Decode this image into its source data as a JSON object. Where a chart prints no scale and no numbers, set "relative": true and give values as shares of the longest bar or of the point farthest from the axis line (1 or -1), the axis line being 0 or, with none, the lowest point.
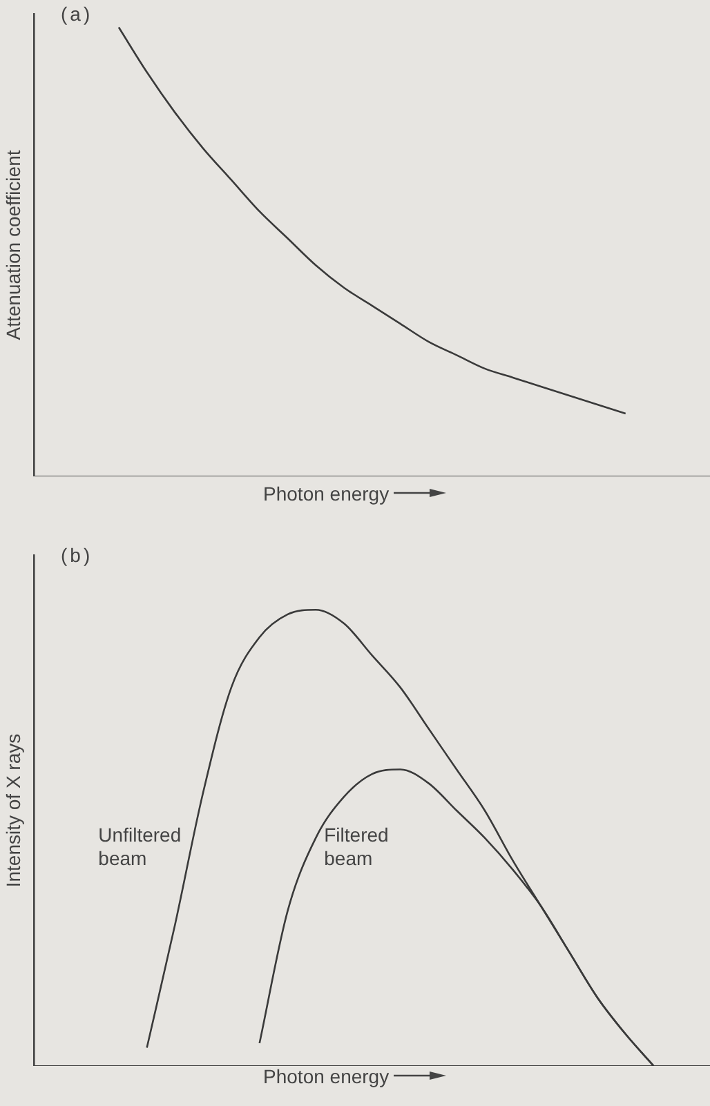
{
  "chart_data": [
    {
      "type": "line",
      "title": "(a)",
      "xlabel": "Photon energy",
      "ylabel": "Attenuation coefficient",
      "relative": true,
      "color": "#3a3a3a",
      "categories": [
        null,
        null,
        null,
        null,
        null,
        null,
        null,
        null,
        null,
        null,
        null,
        null,
        null,
        null,
        null,
        null,
        null,
        null,
        null,
        null,
        null,
        null,
        null,
        null,
        null
      ],
      "values": [
        null,
        null,
        null,
        1.0,
        0.9,
        0.81,
        0.73,
        0.66,
        0.59,
        0.53,
        0.47,
        0.42,
        0.38,
        0.34,
        0.3,
        0.27,
        0.24,
        0.22,
        0.2,
        0.18,
        0.16,
        0.14,
        null,
        null,
        null
      ]
    },
    {
      "type": "line",
      "title": "(b)",
      "xlabel": "Photon energy",
      "ylabel": "Intensity of X rays",
      "relative": true,
      "categories": [
        null,
        null,
        null,
        null,
        null,
        null,
        null,
        null,
        null,
        null,
        null,
        null,
        null,
        null,
        null,
        null,
        null,
        null,
        null,
        null,
        null,
        null,
        null,
        null,
        null
      ],
      "series": [
        {
          "name": "Unfiltered beam",
          "color": "#3a3a3a",
          "values": [
            null,
            null,
            null,
            null,
            0.04,
            0.31,
            0.6,
            0.83,
            0.94,
            0.99,
            1.0,
            0.97,
            0.9,
            0.83,
            0.74,
            0.65,
            0.56,
            0.45,
            0.35,
            0.25,
            0.15,
            0.07,
            0,
            null,
            null
          ]
        },
        {
          "name": "Filtered beam",
          "color": "#3a3a3a",
          "values": [
            null,
            null,
            null,
            null,
            null,
            null,
            null,
            null,
            0.05,
            0.34,
            0.5,
            0.59,
            0.64,
            0.65,
            0.62,
            0.56,
            0.5,
            0.43,
            0.35,
            0.25,
            0.15,
            0.07,
            0,
            null,
            null
          ]
        }
      ]
    }
  ]
}
